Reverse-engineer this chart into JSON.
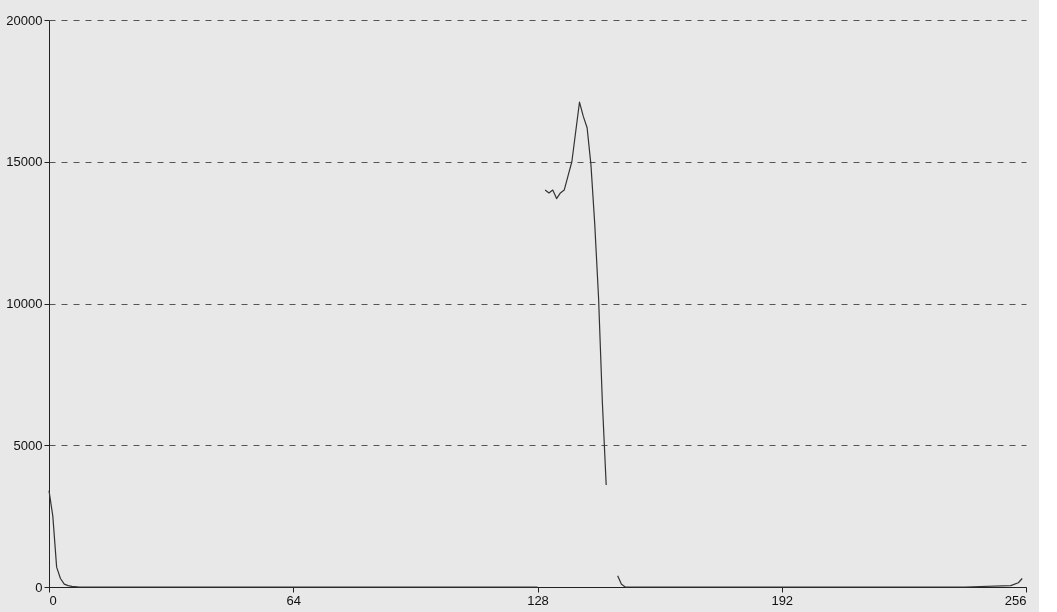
{
  "chart_data": {
    "type": "line",
    "x": [
      0,
      1,
      2,
      3,
      4,
      5,
      6,
      8,
      64,
      128,
      129,
      130,
      131,
      132,
      133,
      134,
      135,
      136,
      137,
      139,
      140,
      141,
      142,
      143,
      144,
      145,
      146,
      147,
      149,
      150,
      151,
      192,
      240,
      252,
      254,
      255
    ],
    "series": [
      {
        "color": "#333333",
        "values": [
          3400,
          2500,
          700,
          300,
          100,
          50,
          20,
          0,
          0,
          0,
          null,
          14000,
          13900,
          14000,
          13700,
          13900,
          14000,
          14500,
          15000,
          17100,
          16600,
          16200,
          14900,
          12800,
          10200,
          6500,
          3600,
          null,
          400,
          100,
          0,
          0,
          0,
          50,
          150,
          300
        ]
      }
    ],
    "xlim": [
      0,
      256
    ],
    "ylim": [
      0,
      20000
    ],
    "xticks": [
      0,
      64,
      128,
      192,
      256
    ],
    "yticks": [
      0,
      5000,
      10000,
      15000,
      20000
    ],
    "grid": "y",
    "line_style": "solid",
    "marker": "none"
  }
}
